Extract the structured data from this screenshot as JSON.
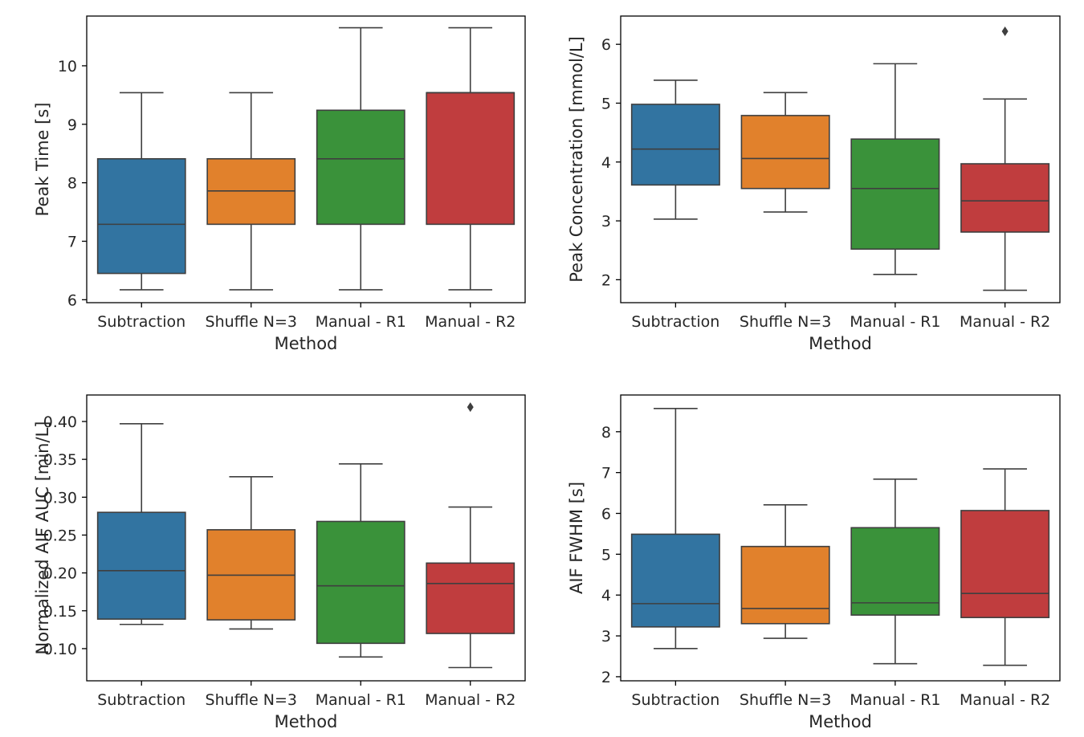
{
  "chart_data": [
    {
      "type": "box",
      "xlabel": "Method",
      "ylabel": "Peak Time [s]",
      "categories": [
        "Subtraction",
        "Shuffle N=3",
        "Manual - R1",
        "Manual - R2"
      ],
      "colors": [
        "#3274a1",
        "#e1812c",
        "#3a923a",
        "#c03d3e"
      ],
      "ylim": [
        5.95,
        10.85
      ],
      "yticks": [
        6,
        7,
        8,
        9,
        10
      ],
      "ytick_labels": [
        "6",
        "7",
        "8",
        "9",
        "10"
      ],
      "boxes": [
        {
          "whisker_low": 6.17,
          "q1": 6.45,
          "median": 7.29,
          "q3": 8.41,
          "whisker_high": 9.54,
          "outliers": []
        },
        {
          "whisker_low": 6.17,
          "q1": 7.29,
          "median": 7.86,
          "q3": 8.41,
          "whisker_high": 9.54,
          "outliers": []
        },
        {
          "whisker_low": 6.17,
          "q1": 7.29,
          "median": 8.41,
          "q3": 9.24,
          "whisker_high": 10.65,
          "outliers": []
        },
        {
          "whisker_low": 6.17,
          "q1": 7.29,
          "median": 9.54,
          "q3": 9.54,
          "whisker_high": 10.65,
          "outliers": []
        }
      ]
    },
    {
      "type": "box",
      "xlabel": "Method",
      "ylabel": "Peak Concentration [mmol/L]",
      "categories": [
        "Subtraction",
        "Shuffle N=3",
        "Manual - R1",
        "Manual - R2"
      ],
      "colors": [
        "#3274a1",
        "#e1812c",
        "#3a923a",
        "#c03d3e"
      ],
      "ylim": [
        1.61,
        6.48
      ],
      "yticks": [
        2,
        3,
        4,
        5,
        6
      ],
      "ytick_labels": [
        "2",
        "3",
        "4",
        "5",
        "6"
      ],
      "boxes": [
        {
          "whisker_low": 3.03,
          "q1": 3.61,
          "median": 4.22,
          "q3": 4.98,
          "whisker_high": 5.39,
          "outliers": []
        },
        {
          "whisker_low": 3.15,
          "q1": 3.55,
          "median": 4.06,
          "q3": 4.79,
          "whisker_high": 5.18,
          "outliers": []
        },
        {
          "whisker_low": 2.09,
          "q1": 2.52,
          "median": 3.55,
          "q3": 4.39,
          "whisker_high": 5.67,
          "outliers": []
        },
        {
          "whisker_low": 1.82,
          "q1": 2.81,
          "median": 3.34,
          "q3": 3.97,
          "whisker_high": 5.07,
          "outliers": [
            6.22
          ]
        }
      ]
    },
    {
      "type": "box",
      "xlabel": "Method",
      "ylabel": "Normalized AIF AUC [min/L]",
      "categories": [
        "Subtraction",
        "Shuffle N=3",
        "Manual - R1",
        "Manual - R2"
      ],
      "colors": [
        "#3274a1",
        "#e1812c",
        "#3a923a",
        "#c03d3e"
      ],
      "ylim": [
        0.0575,
        0.435
      ],
      "yticks": [
        0.1,
        0.15,
        0.2,
        0.25,
        0.3,
        0.35,
        0.4
      ],
      "ytick_labels": [
        "0.10",
        "0.15",
        "0.20",
        "0.25",
        "0.30",
        "0.35",
        "0.40"
      ],
      "boxes": [
        {
          "whisker_low": 0.132,
          "q1": 0.139,
          "median": 0.203,
          "q3": 0.28,
          "whisker_high": 0.397,
          "outliers": []
        },
        {
          "whisker_low": 0.126,
          "q1": 0.138,
          "median": 0.197,
          "q3": 0.257,
          "whisker_high": 0.327,
          "outliers": []
        },
        {
          "whisker_low": 0.089,
          "q1": 0.107,
          "median": 0.183,
          "q3": 0.268,
          "whisker_high": 0.344,
          "outliers": []
        },
        {
          "whisker_low": 0.075,
          "q1": 0.12,
          "median": 0.186,
          "q3": 0.213,
          "whisker_high": 0.287,
          "outliers": [
            0.419
          ]
        }
      ]
    },
    {
      "type": "box",
      "xlabel": "Method",
      "ylabel": "AIF FWHM [s]",
      "categories": [
        "Subtraction",
        "Shuffle N=3",
        "Manual - R1",
        "Manual - R2"
      ],
      "colors": [
        "#3274a1",
        "#e1812c",
        "#3a923a",
        "#c03d3e"
      ],
      "ylim": [
        1.9,
        8.9
      ],
      "yticks": [
        2,
        3,
        4,
        5,
        6,
        7,
        8
      ],
      "ytick_labels": [
        "2",
        "3",
        "4",
        "5",
        "6",
        "7",
        "8"
      ],
      "boxes": [
        {
          "whisker_low": 2.69,
          "q1": 3.22,
          "median": 3.79,
          "q3": 5.49,
          "whisker_high": 8.57,
          "outliers": []
        },
        {
          "whisker_low": 2.94,
          "q1": 3.3,
          "median": 3.67,
          "q3": 5.19,
          "whisker_high": 6.21,
          "outliers": []
        },
        {
          "whisker_low": 2.32,
          "q1": 3.51,
          "median": 3.81,
          "q3": 5.65,
          "whisker_high": 6.84,
          "outliers": []
        },
        {
          "whisker_low": 2.28,
          "q1": 3.45,
          "median": 4.04,
          "q3": 6.07,
          "whisker_high": 7.09,
          "outliers": []
        }
      ]
    }
  ]
}
